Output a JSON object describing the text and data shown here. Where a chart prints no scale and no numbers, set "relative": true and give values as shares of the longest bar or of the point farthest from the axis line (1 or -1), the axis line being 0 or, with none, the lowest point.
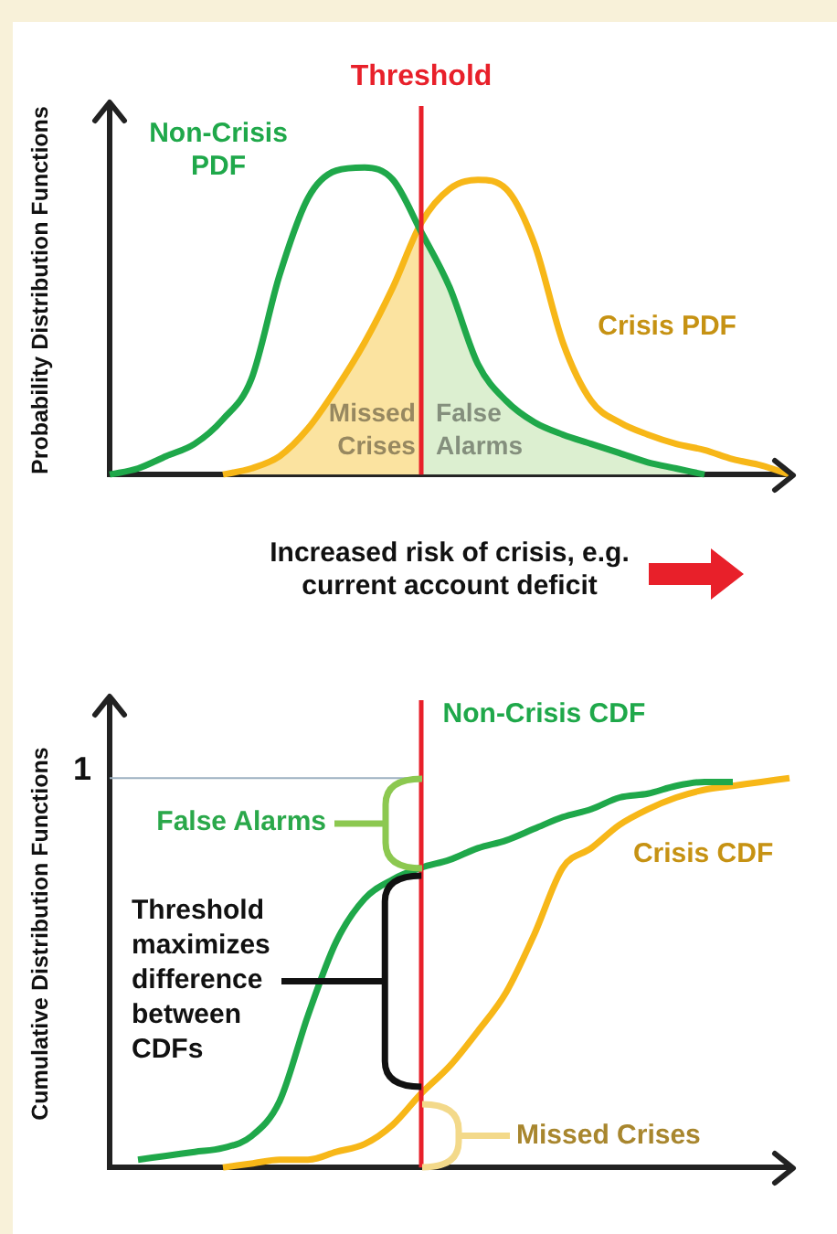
{
  "chart_data": [
    {
      "type": "line",
      "relative": true,
      "ylabel": "Probability Distribution Functions",
      "xlabel": "Increased risk of crisis, e.g. current account deficit",
      "legend": false,
      "grid": false,
      "categories": [
        null,
        null,
        null,
        null,
        null,
        null,
        null,
        null,
        null,
        null,
        null,
        null,
        null,
        null,
        null,
        null,
        null,
        null,
        null,
        null,
        null,
        null,
        null,
        null,
        null
      ],
      "annotations": [
        "Threshold"
      ],
      "series": [
        {
          "name": "Missed Crises",
          "type": "area",
          "color": "#fbe3a0",
          "values": [
            null,
            null,
            null,
            null,
            0,
            0.02,
            0.06,
            0.15,
            0.28,
            0.43,
            0.61,
            0.82,
            null,
            null,
            null,
            null,
            null,
            null,
            null,
            null,
            null,
            null,
            null,
            null,
            null
          ]
        },
        {
          "name": "False Alarms",
          "type": "area",
          "color": "#dcefd0",
          "values": [
            null,
            null,
            null,
            null,
            null,
            null,
            null,
            null,
            null,
            null,
            null,
            0.79,
            0.61,
            0.36,
            0.24,
            0.17,
            0.13,
            0.1,
            0.07,
            0.04,
            0.02,
            0,
            null,
            null,
            null
          ]
        },
        {
          "name": "Non-Crisis PDF",
          "color": "#1fa84a",
          "values": [
            0,
            0.02,
            0.06,
            0.1,
            0.18,
            0.31,
            0.65,
            0.9,
            0.99,
            1,
            0.96,
            0.79,
            0.61,
            0.36,
            0.24,
            0.17,
            0.13,
            0.1,
            0.07,
            0.04,
            0.02,
            0,
            null,
            null,
            null
          ]
        },
        {
          "name": "Crisis PDF",
          "color": "#f7b718",
          "values": [
            null,
            null,
            null,
            null,
            0,
            0.02,
            0.06,
            0.15,
            0.28,
            0.43,
            0.61,
            0.82,
            0.93,
            0.96,
            0.93,
            0.75,
            0.43,
            0.24,
            0.17,
            0.13,
            0.1,
            0.08,
            0.05,
            0.03,
            0
          ]
        }
      ]
    },
    {
      "type": "line",
      "relative": true,
      "ylabel": "Cumulative Distribution Functions",
      "legend": false,
      "grid": false,
      "categories": [
        null,
        null,
        null,
        null,
        null,
        null,
        null,
        null,
        null,
        null,
        null,
        null,
        null,
        null,
        null,
        null,
        null,
        null,
        null,
        null,
        null,
        null,
        null,
        null,
        null
      ],
      "ref_lines": [
        {
          "axis": "y",
          "value": 1,
          "color": "#9db0c0"
        }
      ],
      "annotations": [
        "1",
        "False Alarms",
        "Threshold maximizes difference between CDFs",
        "Missed Crises"
      ],
      "series": [
        {
          "name": "Non-Crisis CDF",
          "color": "#1fa84a",
          "values": [
            null,
            0.02,
            0.03,
            0.04,
            0.05,
            0.08,
            0.17,
            0.39,
            0.58,
            0.69,
            0.74,
            0.77,
            0.79,
            0.82,
            0.84,
            0.87,
            0.9,
            0.92,
            0.95,
            0.96,
            0.98,
            0.99,
            0.99,
            null,
            null
          ]
        },
        {
          "name": "Crisis CDF",
          "color": "#f7b718",
          "values": [
            null,
            null,
            null,
            null,
            0,
            0.01,
            0.02,
            0.02,
            0.04,
            0.06,
            0.11,
            0.19,
            0.26,
            0.35,
            0.45,
            0.6,
            0.77,
            0.82,
            0.88,
            0.92,
            0.95,
            0.97,
            0.98,
            0.99,
            1
          ]
        }
      ]
    }
  ]
}
